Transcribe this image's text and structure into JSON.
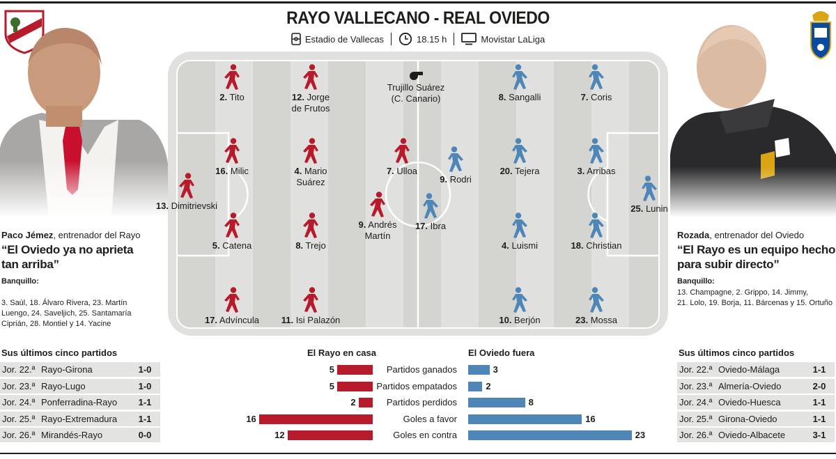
{
  "title": "RAYO VALLECANO  -  REAL OVIEDO",
  "match_info": {
    "stadium": "Estadio de Vallecas",
    "time": "18.15 h",
    "tv": "Movistar LaLiga"
  },
  "referee": {
    "line1": "Trujillo Suárez",
    "line2": "(C. Canario)"
  },
  "colors": {
    "rayo": "#b71a2b",
    "oviedo": "#4f86b8",
    "row_bg": "#e3e3e1"
  },
  "home": {
    "coach_name": "Paco Jémez",
    "coach_role": ", entrenador del Rayo",
    "quote_line1": "“El Oviedo ya no aprieta",
    "quote_line2": "tan arriba”",
    "bench_title": "Banquillo:",
    "bench_lines": [
      "3. Saúl, 18. Álvaro Rivera, 23. Martín",
      "Luengo, 24. Saveljich, 25. Santamaría",
      "Ciprián, 28. Montiel y 14. Yacine"
    ],
    "players": [
      {
        "num": "13.",
        "name": "Dimitrievski",
        "name2": ""
      },
      {
        "num": "2.",
        "name": "Tito",
        "name2": ""
      },
      {
        "num": "16.",
        "name": "Milic",
        "name2": ""
      },
      {
        "num": "5.",
        "name": "Catena",
        "name2": ""
      },
      {
        "num": "17.",
        "name": "Advíncula",
        "name2": ""
      },
      {
        "num": "12.",
        "name": "Jorge",
        "name2": "de Frutos"
      },
      {
        "num": "4.",
        "name": "Mario",
        "name2": "Suárez"
      },
      {
        "num": "8.",
        "name": "Trejo",
        "name2": ""
      },
      {
        "num": "11.",
        "name": "Isi Palazón",
        "name2": ""
      },
      {
        "num": "7.",
        "name": "Ulloa",
        "name2": ""
      },
      {
        "num": "9.",
        "name": "Andrés",
        "name2": "Martín"
      }
    ]
  },
  "away": {
    "coach_name": "Rozada",
    "coach_role": ", entrenador del Oviedo",
    "quote_line1": "“El Rayo es un equipo hecho",
    "quote_line2": "para subir directo”",
    "bench_title": "Banquillo:",
    "bench_lines": [
      "13. Champagne, 2. Grippo, 14. Jimmy,",
      "21. Lolo, 19. Borja, 11. Bárcenas y 15. Ortuño"
    ],
    "players": [
      {
        "num": "9.",
        "name": "Rodri",
        "name2": ""
      },
      {
        "num": "17.",
        "name": "Ibra",
        "name2": ""
      },
      {
        "num": "8.",
        "name": "Sangalli",
        "name2": ""
      },
      {
        "num": "20.",
        "name": "Tejera",
        "name2": ""
      },
      {
        "num": "4.",
        "name": "Luismi",
        "name2": ""
      },
      {
        "num": "10.",
        "name": "Berjón",
        "name2": ""
      },
      {
        "num": "7.",
        "name": "Coris",
        "name2": ""
      },
      {
        "num": "3.",
        "name": "Arribas",
        "name2": ""
      },
      {
        "num": "18.",
        "name": "Christian",
        "name2": ""
      },
      {
        "num": "23.",
        "name": "Mossa",
        "name2": ""
      },
      {
        "num": "25.",
        "name": "Lunin",
        "name2": ""
      }
    ]
  },
  "last_five_title": "Sus últimos cinco partidos",
  "home_last_five": [
    {
      "jornada": "Jor. 22.ª",
      "match": "Rayo-Girona",
      "result": "1-0"
    },
    {
      "jornada": "Jor. 23.ª",
      "match": "Rayo-Lugo",
      "result": "1-0"
    },
    {
      "jornada": "Jor. 24.ª",
      "match": "Ponferradina-Rayo",
      "result": "1-1"
    },
    {
      "jornada": "Jor. 25.ª",
      "match": "Rayo-Extremadura",
      "result": "1-1"
    },
    {
      "jornada": "Jor. 26.ª",
      "match": "Mirandés-Rayo",
      "result": "0-0"
    }
  ],
  "away_last_five": [
    {
      "jornada": "Jor. 22.ª",
      "match": "Oviedo-Málaga",
      "result": "1-1"
    },
    {
      "jornada": "Jor. 23.ª",
      "match": "Almería-Oviedo",
      "result": "2-0"
    },
    {
      "jornada": "Jor. 24.ª",
      "match": "Oviedo-Huesca",
      "result": "1-1"
    },
    {
      "jornada": "Jor. 25.ª",
      "match": "Girona-Oviedo",
      "result": "1-1"
    },
    {
      "jornada": "Jor. 26.ª",
      "match": "Oviedo-Albacete",
      "result": "3-1"
    }
  ],
  "stats": {
    "home_title": "El Rayo en casa",
    "away_title": "El Oviedo fuera",
    "rows": [
      {
        "label": "Partidos ganados",
        "home": 5,
        "away": 3
      },
      {
        "label": "Partidos empatados",
        "home": 5,
        "away": 2
      },
      {
        "label": "Partidos perdidos",
        "home": 2,
        "away": 8
      },
      {
        "label": "Goles a favor",
        "home": 16,
        "away": 16
      },
      {
        "label": "Goles en contra",
        "home": 12,
        "away": 23
      }
    ]
  }
}
